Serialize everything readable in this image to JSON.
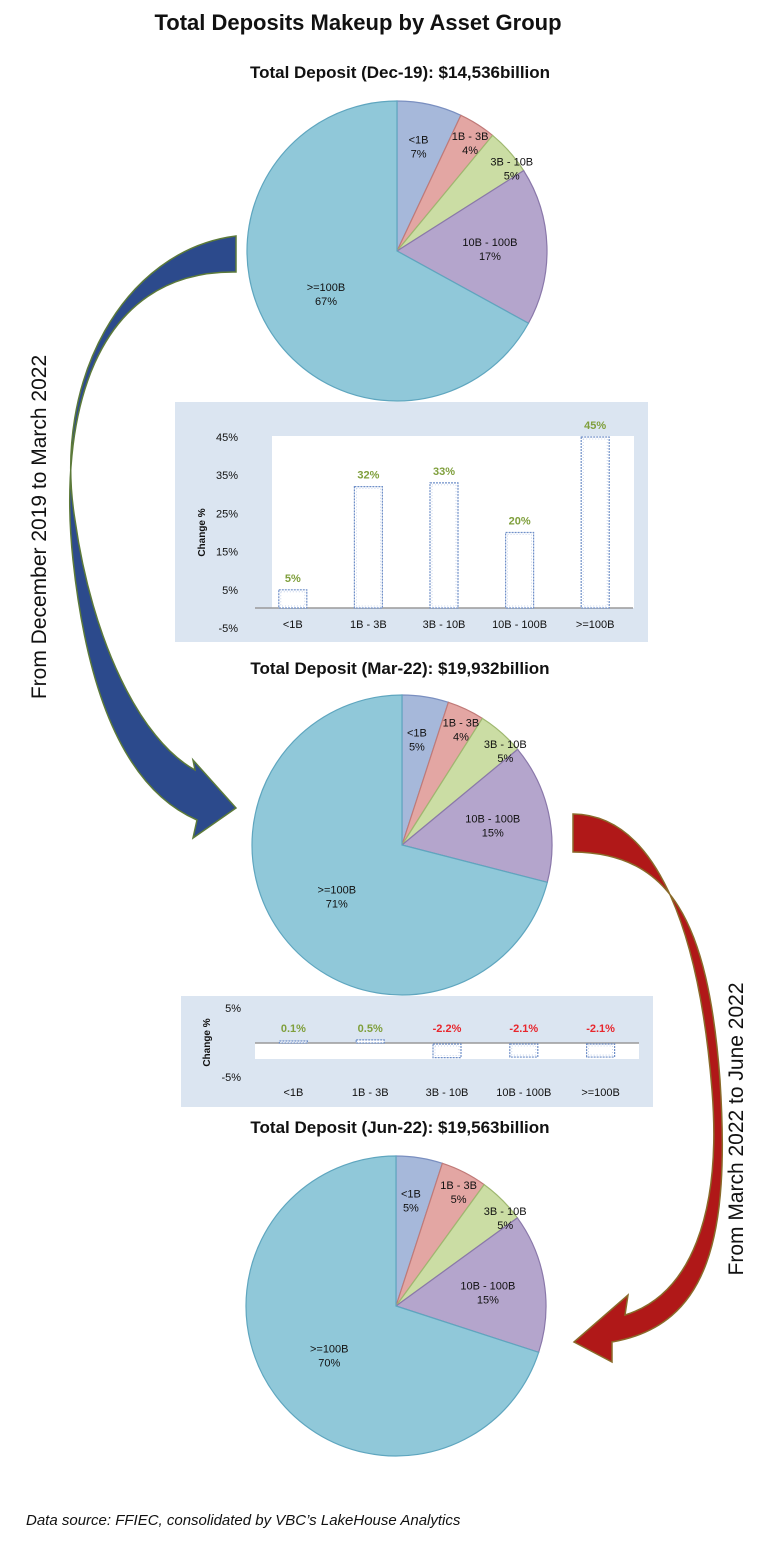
{
  "title": "Total Deposits Makeup by Asset Group",
  "footer": "Data source: FFIEC, consolidated by VBC’s LakeHouse Analytics",
  "side_labels": {
    "left": "From December 2019 to March 2022",
    "right": "From March 2022 to June 2022"
  },
  "colors": {
    "lt1b": "#a6b8da",
    "b1_3": "#e3a6a3",
    "b3_10": "#cbdda4",
    "b10_100": "#b4a5cc",
    "ge100": "#90c8d9",
    "bar_panel": "#dbe5f1",
    "positive_label": "#7f9f3c",
    "negative_label": "#e8262d",
    "arrow_blue": "#2c4a8c",
    "arrow_red": "#b01818"
  },
  "chart_data": [
    {
      "type": "pie",
      "title": "Total Deposit (Dec-19): $14,536billion",
      "categories": [
        "<1B",
        "1B - 3B",
        "3B - 10B",
        "10B - 100B",
        ">=100B"
      ],
      "values": [
        7,
        4,
        5,
        17,
        67
      ],
      "labels": [
        "7%",
        "4%",
        "5%",
        "17%",
        "67%"
      ]
    },
    {
      "type": "bar",
      "categories": [
        "<1B",
        "1B - 3B",
        "3B - 10B",
        "10B - 100B",
        ">=100B"
      ],
      "values": [
        5,
        32,
        33,
        20,
        45
      ],
      "labels": [
        "5%",
        "32%",
        "33%",
        "20%",
        "45%"
      ],
      "ylabel": "Change %",
      "yticks": [
        "45%",
        "35%",
        "25%",
        "15%",
        "5%",
        "-5%"
      ],
      "ylim": [
        -5,
        45
      ]
    },
    {
      "type": "pie",
      "title": "Total Deposit (Mar-22): $19,932billion",
      "categories": [
        "<1B",
        "1B - 3B",
        "3B - 10B",
        "10B - 100B",
        ">=100B"
      ],
      "values": [
        5,
        4,
        5,
        15,
        71
      ],
      "labels": [
        "5%",
        "4%",
        "5%",
        "15%",
        "71%"
      ]
    },
    {
      "type": "bar",
      "categories": [
        "<1B",
        "1B - 3B",
        "3B - 10B",
        "10B - 100B",
        ">=100B"
      ],
      "values": [
        0.1,
        0.5,
        -2.2,
        -2.1,
        -2.1
      ],
      "labels": [
        "0.1%",
        "0.5%",
        "-2.2%",
        "-2.1%",
        "-2.1%"
      ],
      "ylabel": "Change %",
      "yticks": [
        "5%",
        "-5%"
      ],
      "ylim": [
        -5,
        5
      ]
    },
    {
      "type": "pie",
      "title": "Total Deposit (Jun-22): $19,563billion",
      "categories": [
        "<1B",
        "1B - 3B",
        "3B - 10B",
        "10B - 100B",
        ">=100B"
      ],
      "values": [
        5,
        5,
        5,
        15,
        70
      ],
      "labels": [
        "5%",
        "5%",
        "5%",
        "15%",
        "70%"
      ]
    }
  ]
}
